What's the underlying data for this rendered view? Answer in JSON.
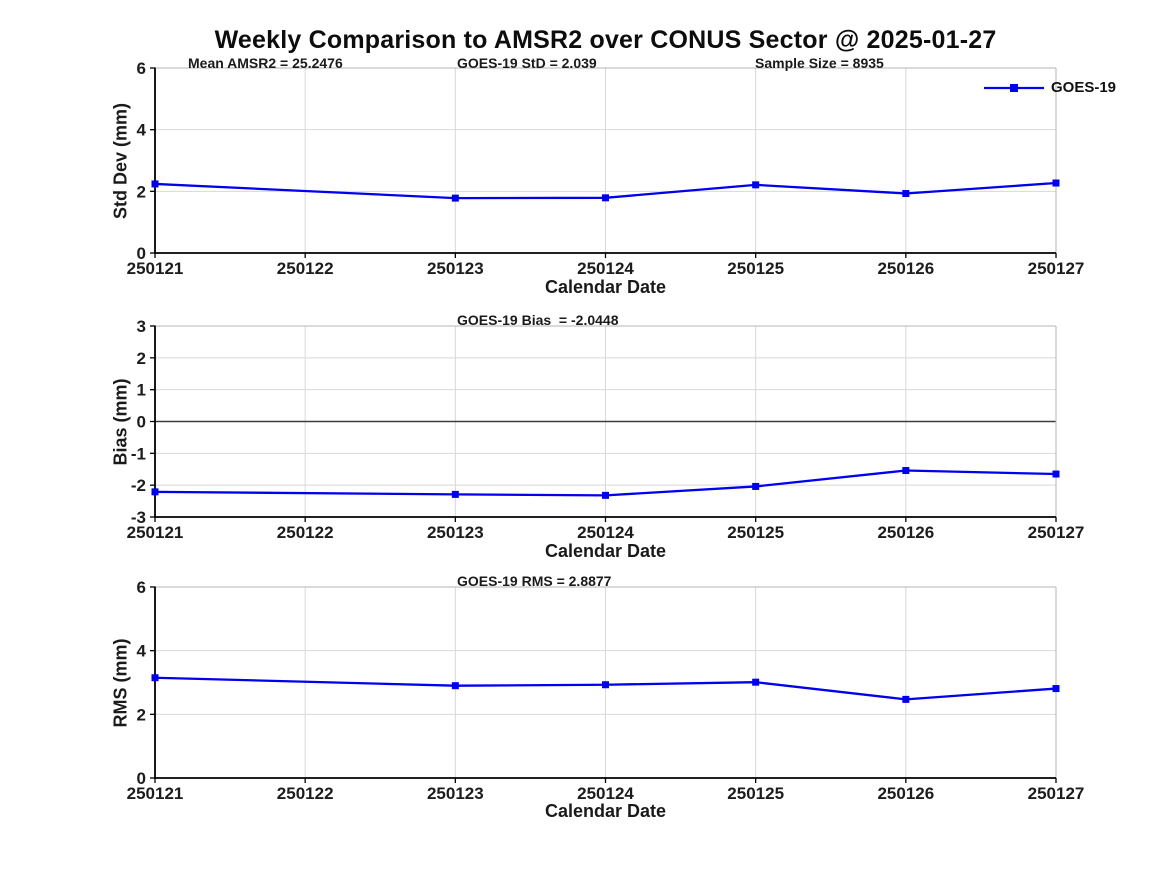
{
  "title": "Weekly Comparison to AMSR2 over CONUS Sector @ 2025-01-27",
  "legend": {
    "label": "GOES-19"
  },
  "colors": {
    "line": "#0000EE",
    "grid": "#d8d8d8",
    "spine_dark": "#000000",
    "spine_light": "#b5b5b5",
    "zero_line": "#3c3c3c",
    "tick_text": "#1c1c1c"
  },
  "x_tick_labels": [
    "250121",
    "250122",
    "250123",
    "250124",
    "250125",
    "250126",
    "250127"
  ],
  "chart_data": [
    {
      "type": "line",
      "name": "std-dev-panel",
      "annotations": [
        "Mean AMSR2 = 25.2476",
        "GOES-19 StD = 2.039",
        "Sample Size = 8935"
      ],
      "ylabel": "Std Dev (mm)",
      "xlabel": "Calendar Date",
      "ylim": [
        0,
        6
      ],
      "yticks": [
        0,
        2,
        4,
        6
      ],
      "xlim": [
        250121,
        250127
      ],
      "grid": true,
      "zero_line": false,
      "x": [
        250121,
        250123,
        250124,
        250125,
        250126,
        250127
      ],
      "series": [
        {
          "name": "GOES-19",
          "values": [
            2.24,
            1.78,
            1.79,
            2.21,
            1.93,
            2.27
          ]
        }
      ]
    },
    {
      "type": "line",
      "name": "bias-panel",
      "annotations": [
        "GOES-19 Bias  = -2.0448"
      ],
      "ylabel": "Bias (mm)",
      "xlabel": "Calendar Date",
      "ylim": [
        -3,
        3
      ],
      "yticks": [
        -3,
        -2,
        -1,
        0,
        1,
        2,
        3
      ],
      "xlim": [
        250121,
        250127
      ],
      "grid": true,
      "zero_line": true,
      "x": [
        250121,
        250123,
        250124,
        250125,
        250126,
        250127
      ],
      "series": [
        {
          "name": "GOES-19",
          "values": [
            -2.21,
            -2.29,
            -2.32,
            -2.04,
            -1.54,
            -1.65
          ]
        }
      ]
    },
    {
      "type": "line",
      "name": "rms-panel",
      "annotations": [
        "GOES-19 RMS = 2.8877"
      ],
      "ylabel": "RMS (mm)",
      "xlabel": "Calendar Date",
      "ylim": [
        0,
        6
      ],
      "yticks": [
        0,
        2,
        4,
        6
      ],
      "xlim": [
        250121,
        250127
      ],
      "grid": true,
      "zero_line": false,
      "x": [
        250121,
        250123,
        250124,
        250125,
        250126,
        250127
      ],
      "series": [
        {
          "name": "GOES-19",
          "values": [
            3.15,
            2.9,
            2.93,
            3.01,
            2.47,
            2.81
          ]
        }
      ]
    }
  ]
}
